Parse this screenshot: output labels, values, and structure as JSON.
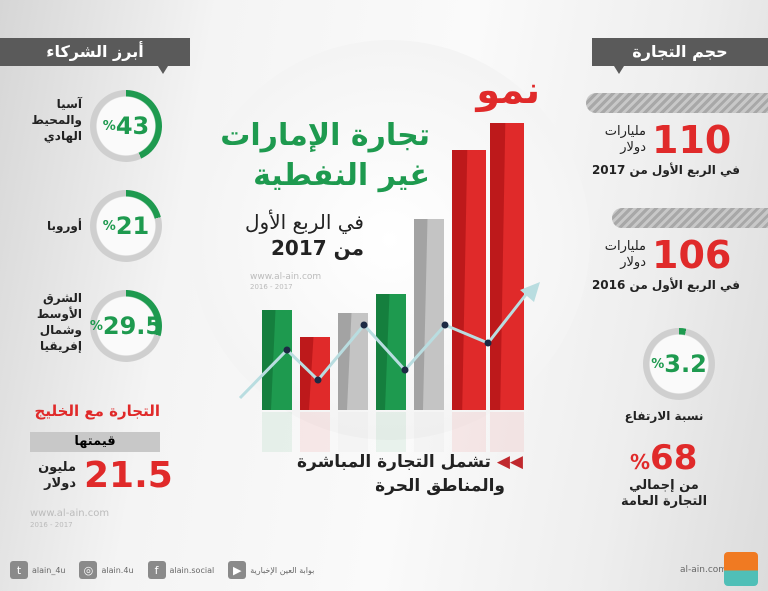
{
  "title": {
    "line1": "نمو",
    "line2": "تجارة الإمارات",
    "line3": "غير النفطية",
    "line4": "في الربع الأول",
    "line5": "من 2017"
  },
  "watermark": {
    "site": "www.al-ain.com",
    "years": "2016 - 2017"
  },
  "partners": {
    "header": "أبرز الشركاء",
    "items": [
      {
        "value": "43",
        "pct": "%",
        "label": "آسيا والمحيط الهادي",
        "fraction": 0.43
      },
      {
        "value": "21",
        "pct": "%",
        "label": "أوروبا",
        "fraction": 0.21
      },
      {
        "value": "29.5",
        "pct": "%",
        "label": "الشرق الأوسط وشمال إفريقيا",
        "fraction": 0.295
      }
    ]
  },
  "gulf": {
    "title": "التجارة مع الخليج",
    "value_label": "قيمتها",
    "value": "21.5",
    "unit1": "مليون",
    "unit2": "دولار"
  },
  "volume": {
    "header": "حجم التجارة",
    "y2017": {
      "value": "110",
      "unit1": "مليارات",
      "unit2": "دولار",
      "caption": "في الربع الأول من 2017"
    },
    "y2016": {
      "value": "106",
      "unit1": "مليارات",
      "unit2": "دولار",
      "caption": "في الربع الأول من 2016"
    },
    "growth": {
      "value": "3.2",
      "pct": "%",
      "label": "نسبة الارتفاع",
      "fraction": 0.032
    },
    "share": {
      "value": "68",
      "pct": "%",
      "line1": "من إجمالي",
      "line2": "التجارة العامة"
    }
  },
  "note": {
    "line1": "تشمل التجارة المباشرة",
    "line2": "والمناطق الحرة"
  },
  "colors": {
    "green": "#1e9a4f",
    "red": "#e02a2a",
    "gray": "#5a5a5a"
  },
  "footer": {
    "twitter": "alain_4u",
    "instagram": "alain.4u",
    "facebook": "alain.social",
    "youtube": "بوابة العين الإخبارية",
    "site": "al-ain.com"
  }
}
